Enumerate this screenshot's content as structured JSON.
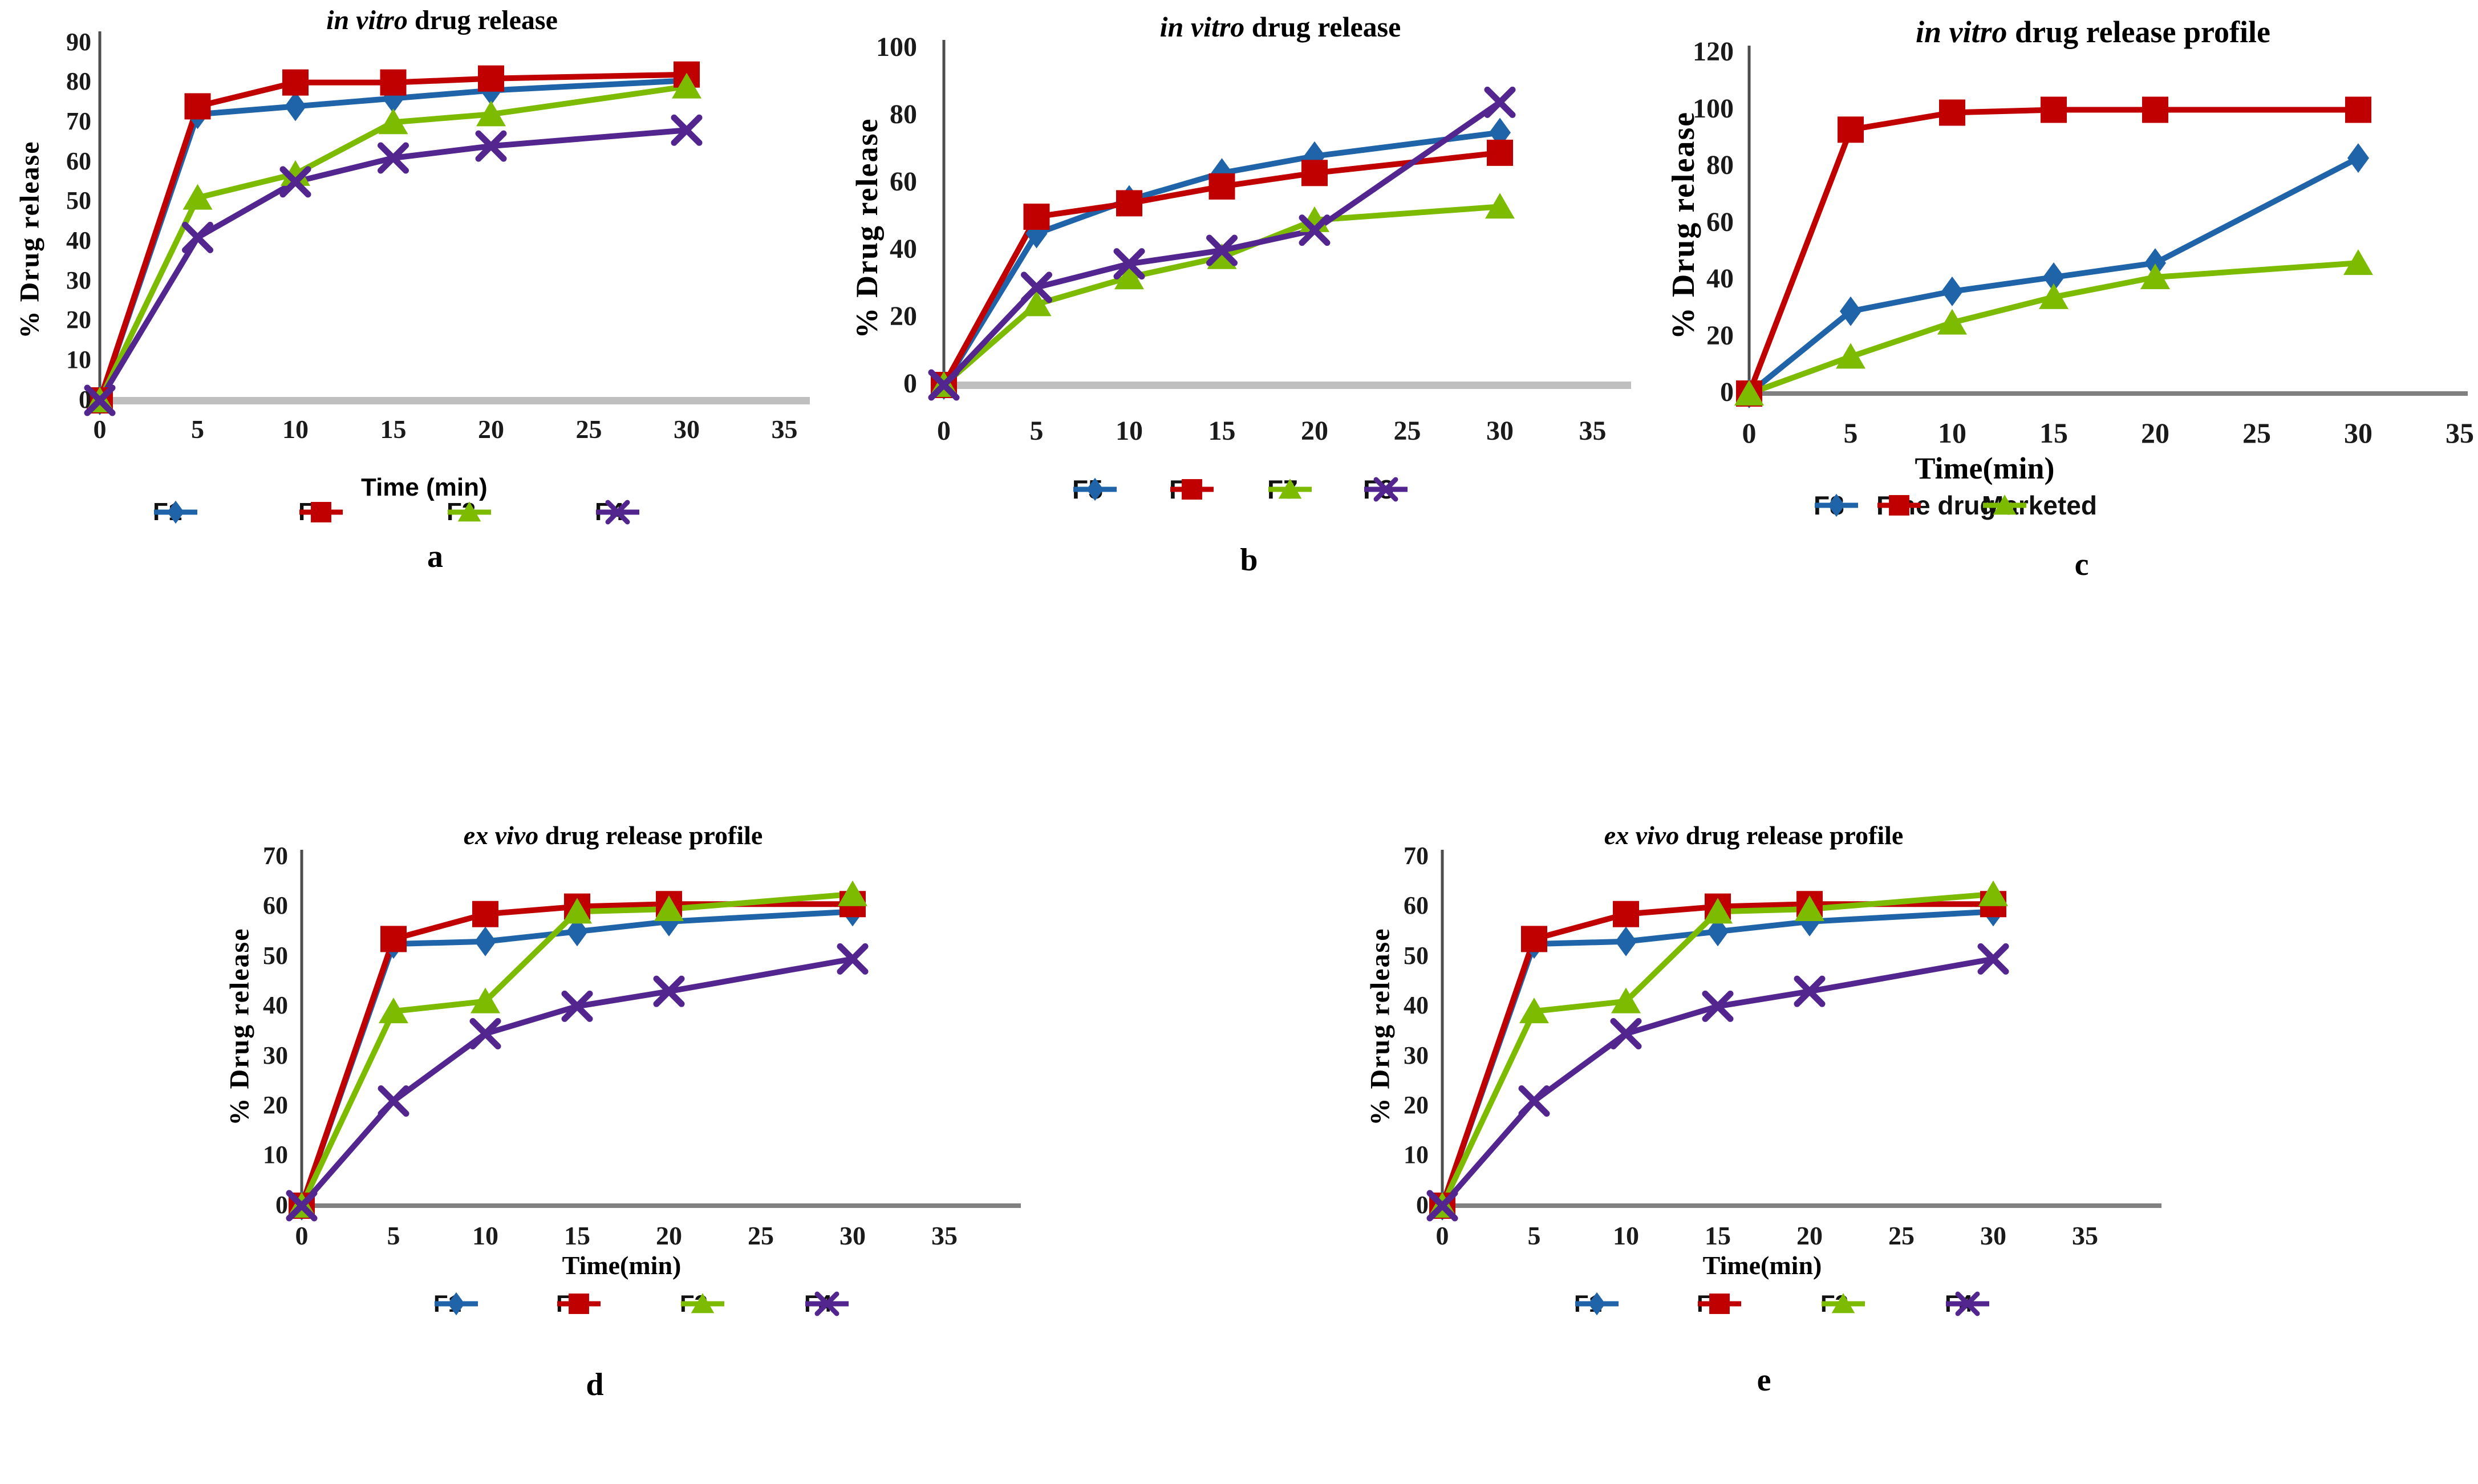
{
  "figure": {
    "background": "#FFFFFF",
    "description_colors": {
      "series_blue": "#1F63A8",
      "series_red": "#C00000",
      "series_green": "#7CBB00",
      "series_purple": "#53258E",
      "baseline_light": "#BFBFBF",
      "baseline_dark": "#808080",
      "axis": "#4D4D4D"
    }
  },
  "chart_data": [
    {
      "panel_label": "a",
      "type": "line",
      "title_italic": "in vitro",
      "title_rest": " drug release",
      "xlabel": "Time (min)",
      "ylabel": "% Drug release",
      "x": [
        0,
        5,
        10,
        15,
        20,
        30
      ],
      "x_ticks": [
        0,
        5,
        10,
        15,
        20,
        25,
        30,
        35
      ],
      "y_ticks": [
        0,
        10,
        20,
        30,
        40,
        50,
        60,
        70,
        80,
        90
      ],
      "xlim": [
        0,
        35
      ],
      "ylim": [
        0,
        90
      ],
      "grid": false,
      "legend_position": "bottom",
      "series": [
        {
          "name": "F1",
          "color": "#1F63A8",
          "marker": "diamond",
          "values": [
            0,
            72,
            74,
            76,
            78,
            80.5
          ]
        },
        {
          "name": "F2",
          "color": "#C00000",
          "marker": "square",
          "values": [
            0,
            74,
            80,
            80,
            81,
            82
          ]
        },
        {
          "name": "F3",
          "color": "#7CBB00",
          "marker": "triangle",
          "values": [
            0,
            51,
            57,
            70,
            72,
            79
          ]
        },
        {
          "name": "F4",
          "color": "#53258E",
          "marker": "x",
          "values": [
            0,
            41,
            55,
            61,
            64,
            68
          ]
        }
      ]
    },
    {
      "panel_label": "b",
      "type": "line",
      "title_italic": "in vitro",
      "title_rest": " drug release",
      "xlabel": "",
      "ylabel": "% Drug release",
      "x": [
        0,
        5,
        10,
        15,
        20,
        30
      ],
      "x_ticks": [
        0,
        5,
        10,
        15,
        20,
        25,
        30,
        35
      ],
      "y_ticks": [
        0,
        20,
        40,
        60,
        80,
        100
      ],
      "xlim": [
        0,
        35
      ],
      "ylim": [
        0,
        100
      ],
      "grid": false,
      "legend_position": "bottom",
      "series": [
        {
          "name": "F5",
          "color": "#1F63A8",
          "marker": "diamond",
          "values": [
            0,
            45,
            55,
            63,
            68,
            75
          ]
        },
        {
          "name": "F6",
          "color": "#C00000",
          "marker": "square",
          "values": [
            0,
            50,
            54,
            59,
            63,
            69
          ]
        },
        {
          "name": "F7",
          "color": "#7CBB00",
          "marker": "triangle",
          "values": [
            0,
            24,
            32,
            38,
            49,
            53
          ]
        },
        {
          "name": "F8",
          "color": "#53258E",
          "marker": "x",
          "values": [
            0,
            29,
            36,
            40,
            46,
            84
          ]
        }
      ]
    },
    {
      "panel_label": "c",
      "type": "line",
      "title_italic": "in vitro",
      "title_rest": " drug release profile",
      "xlabel": "Time(min)",
      "ylabel": "% Drug release",
      "x": [
        0,
        5,
        10,
        15,
        20,
        30
      ],
      "x_ticks": [
        0,
        5,
        10,
        15,
        20,
        25,
        30,
        35
      ],
      "y_ticks": [
        0,
        20,
        40,
        60,
        80,
        100,
        120
      ],
      "xlim": [
        0,
        35
      ],
      "ylim": [
        0,
        120
      ],
      "grid": false,
      "legend_position": "bottom",
      "series": [
        {
          "name": "F8",
          "color": "#1F63A8",
          "marker": "diamond",
          "values": [
            0,
            29,
            36,
            41,
            46,
            83
          ]
        },
        {
          "name": "Fine drug",
          "color": "#C00000",
          "marker": "square",
          "values": [
            0,
            93,
            99,
            100,
            100,
            100
          ]
        },
        {
          "name": "Marketed",
          "color": "#7CBB00",
          "marker": "triangle",
          "values": [
            0,
            13,
            25,
            34,
            41,
            46
          ]
        }
      ]
    },
    {
      "panel_label": "d",
      "type": "line",
      "title_italic": "ex vivo",
      "title_rest": " drug release profile",
      "xlabel": "Time(min)",
      "ylabel": "% Drug release",
      "x": [
        0,
        5,
        10,
        15,
        20,
        30
      ],
      "x_ticks": [
        0,
        5,
        10,
        15,
        20,
        25,
        30,
        35
      ],
      "y_ticks": [
        0,
        10,
        20,
        30,
        40,
        50,
        60,
        70
      ],
      "xlim": [
        0,
        35
      ],
      "ylim": [
        0,
        70
      ],
      "grid": false,
      "legend_position": "bottom",
      "series": [
        {
          "name": "F1",
          "color": "#1F63A8",
          "marker": "diamond",
          "values": [
            0,
            52.5,
            53,
            55,
            57,
            59
          ]
        },
        {
          "name": "F2",
          "color": "#C00000",
          "marker": "square",
          "values": [
            0,
            53.5,
            58.5,
            60,
            60.5,
            60.5
          ]
        },
        {
          "name": "F3",
          "color": "#7CBB00",
          "marker": "triangle",
          "values": [
            0,
            39,
            41,
            59,
            59.5,
            62.5
          ]
        },
        {
          "name": "F4",
          "color": "#53258E",
          "marker": "x",
          "values": [
            0,
            21,
            34.5,
            40,
            43,
            49.5
          ]
        }
      ]
    },
    {
      "panel_label": "e",
      "type": "line",
      "title_italic": "ex vivo",
      "title_rest": " drug release profile",
      "xlabel": "Time(min)",
      "ylabel": "% Drug release",
      "x": [
        0,
        5,
        10,
        15,
        20,
        30
      ],
      "x_ticks": [
        0,
        5,
        10,
        15,
        20,
        25,
        30,
        35
      ],
      "y_ticks": [
        0,
        10,
        20,
        30,
        40,
        50,
        60,
        70
      ],
      "xlim": [
        0,
        35
      ],
      "ylim": [
        0,
        70
      ],
      "grid": false,
      "legend_position": "bottom",
      "series": [
        {
          "name": "F1",
          "color": "#1F63A8",
          "marker": "diamond",
          "values": [
            0,
            52.5,
            53,
            55,
            57,
            59
          ]
        },
        {
          "name": "F2",
          "color": "#C00000",
          "marker": "square",
          "values": [
            0,
            53.5,
            58.5,
            60,
            60.5,
            60.5
          ]
        },
        {
          "name": "F3",
          "color": "#7CBB00",
          "marker": "triangle",
          "values": [
            0,
            39,
            41,
            59,
            59.5,
            62.5
          ]
        },
        {
          "name": "F4",
          "color": "#53258E",
          "marker": "x",
          "values": [
            0,
            21,
            34.5,
            40,
            43,
            49.5
          ]
        }
      ]
    }
  ]
}
